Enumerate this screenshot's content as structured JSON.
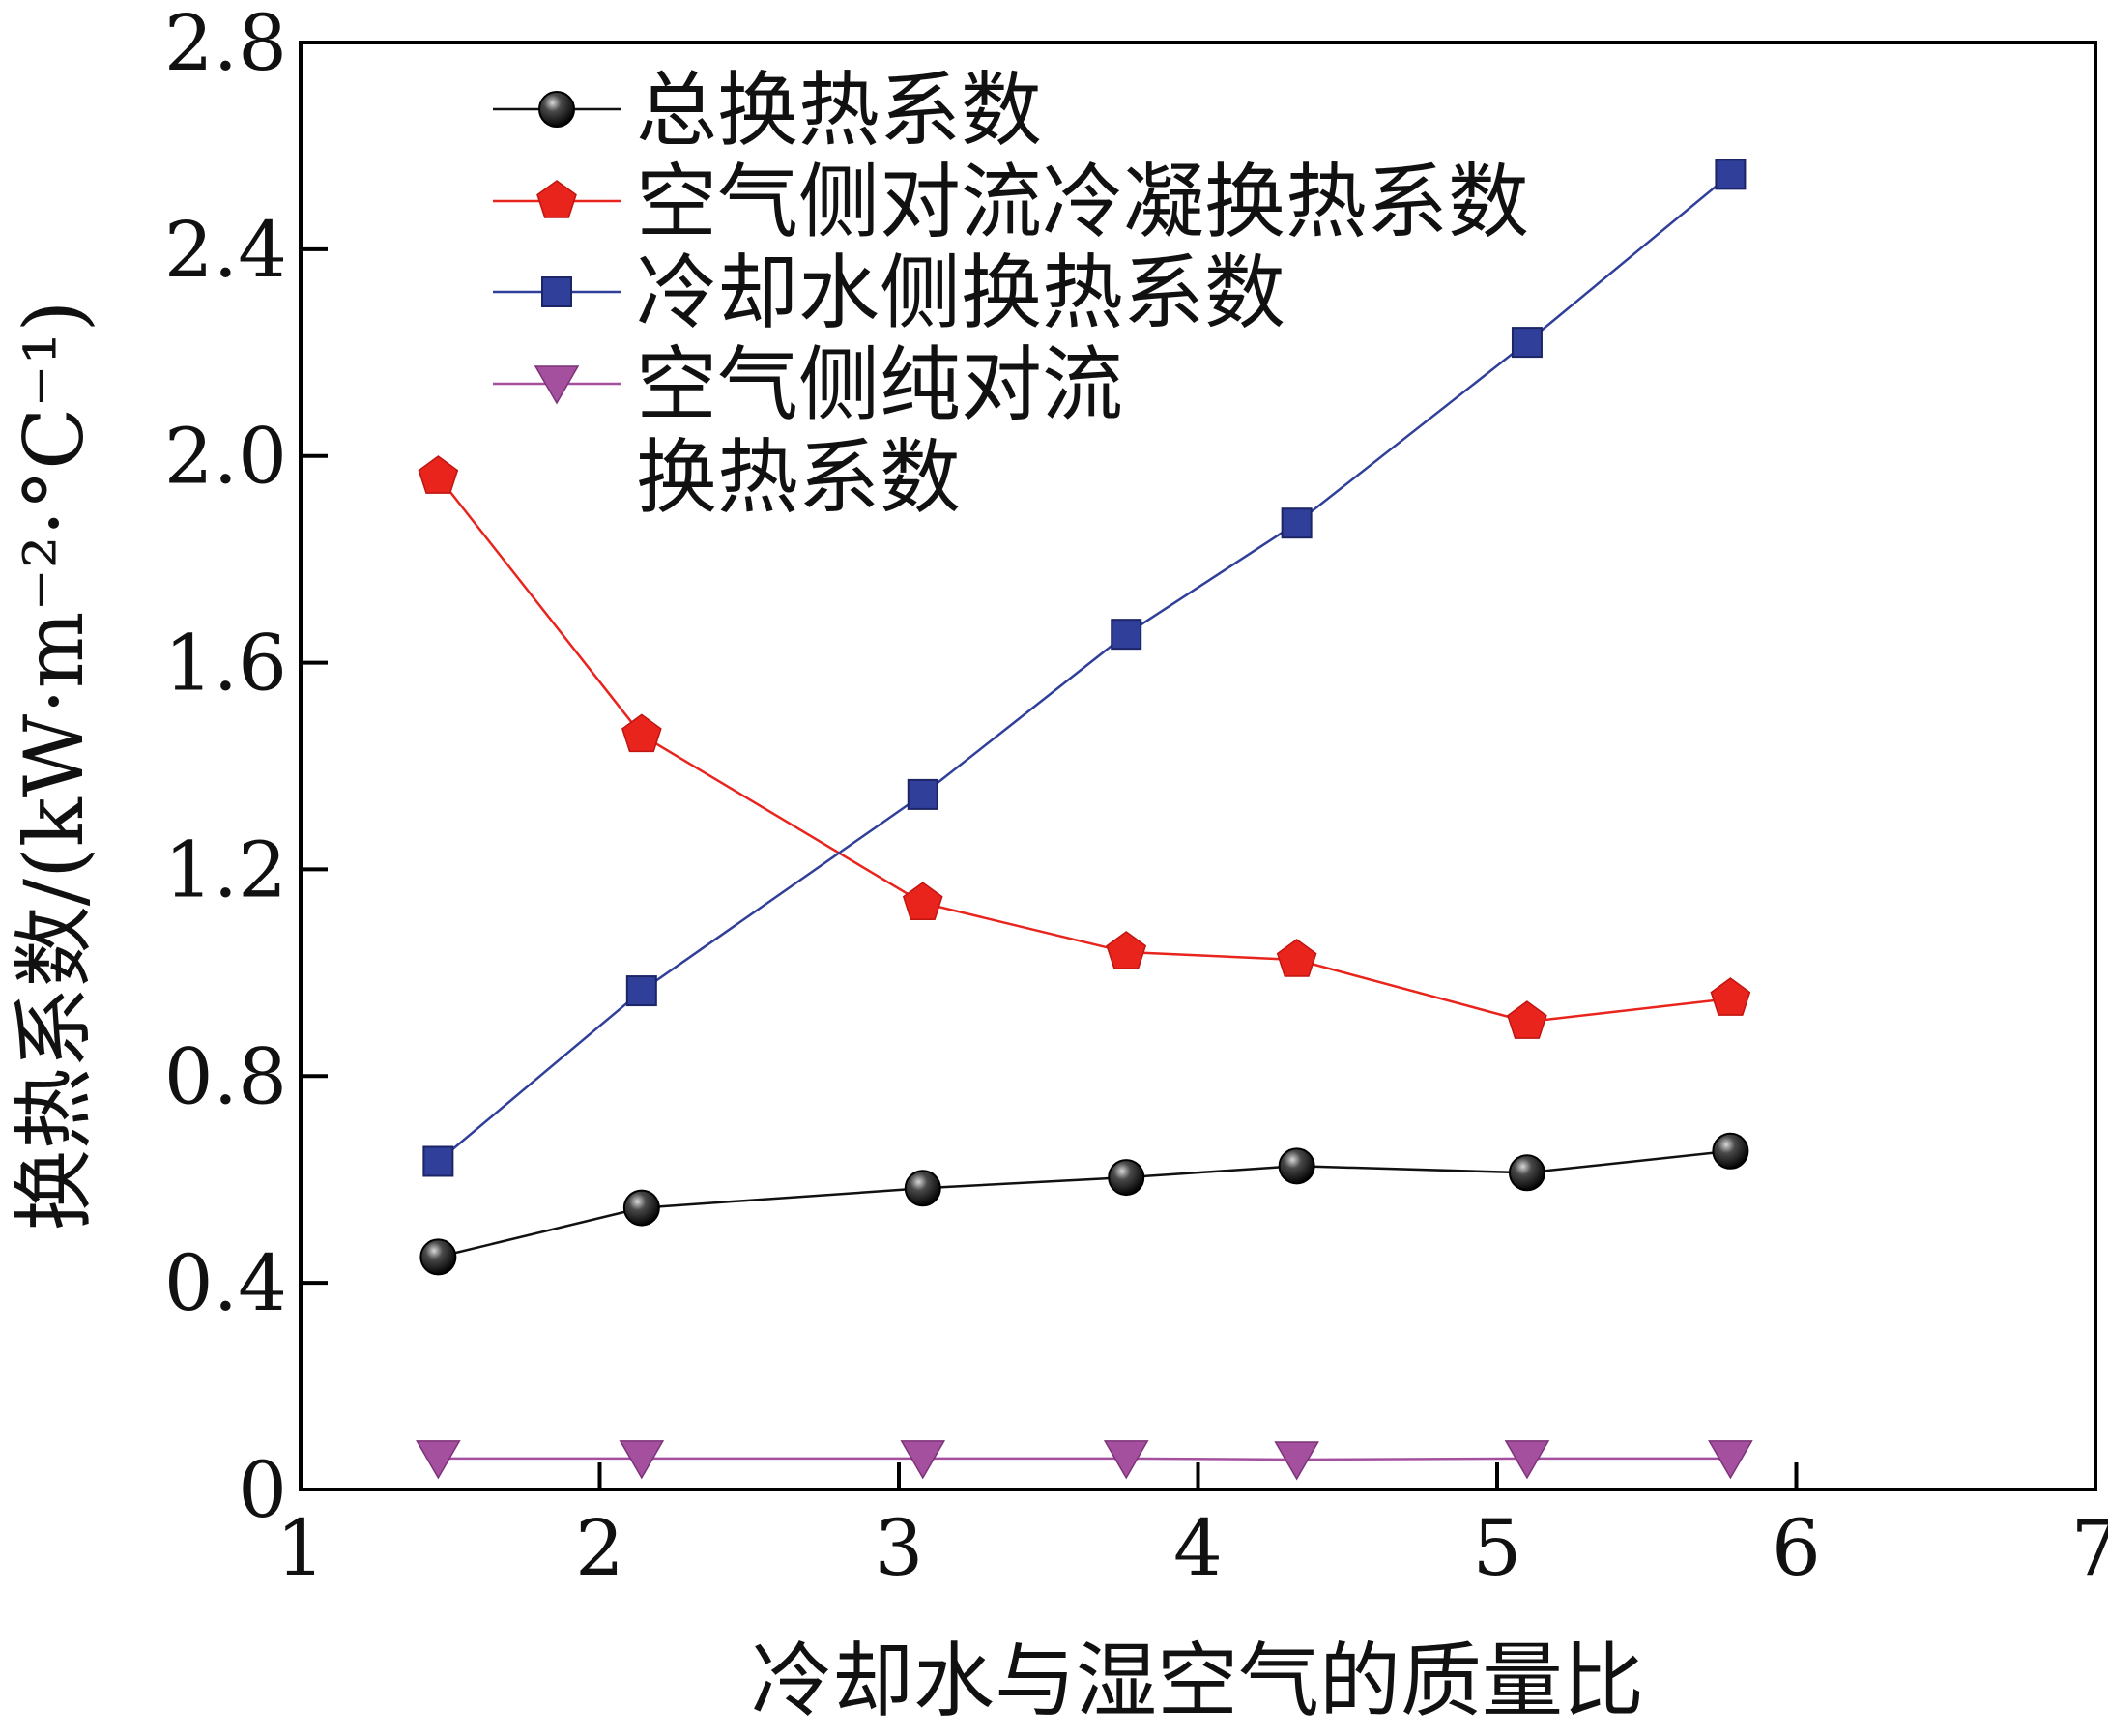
{
  "chart_data": {
    "type": "line",
    "xlabel": "冷却水与湿空气的质量比",
    "ylabel": "换热系数/(kW·m⁻²·°C⁻¹)",
    "xlim": [
      1,
      7
    ],
    "ylim": [
      0,
      2.8
    ],
    "xticks": [
      "1",
      "2",
      "3",
      "4",
      "5",
      "6",
      "7"
    ],
    "yticks": [
      "0",
      "0.4",
      "0.8",
      "1.2",
      "1.6",
      "2.0",
      "2.4",
      "2.8"
    ],
    "x": [
      1.46,
      2.14,
      3.08,
      3.76,
      4.33,
      5.1,
      5.78
    ],
    "series": [
      {
        "name": "总换热系数",
        "values": [
          0.45,
          0.545,
          0.583,
          0.604,
          0.626,
          0.613,
          0.655
        ],
        "color": "#111111",
        "marker": "circle"
      },
      {
        "name": "空气侧对流冷凝换热系数",
        "values": [
          1.96,
          1.46,
          1.135,
          1.04,
          1.025,
          0.905,
          0.95
        ],
        "color": "#e8241d",
        "marker": "pentagon"
      },
      {
        "name": "冷却水侧换热系数",
        "values": [
          0.635,
          0.965,
          1.345,
          1.655,
          1.87,
          2.22,
          2.545
        ],
        "color": "#303f99",
        "marker": "square"
      },
      {
        "name": "空气侧纯对流换热系数",
        "name_lines": [
          "空气侧纯对流",
          "换热系数"
        ],
        "values": [
          0.06,
          0.06,
          0.06,
          0.06,
          0.058,
          0.06,
          0.06
        ],
        "color": "#a4509e",
        "marker": "triangle-down"
      }
    ],
    "legend_position": "top-left",
    "grid": false
  }
}
